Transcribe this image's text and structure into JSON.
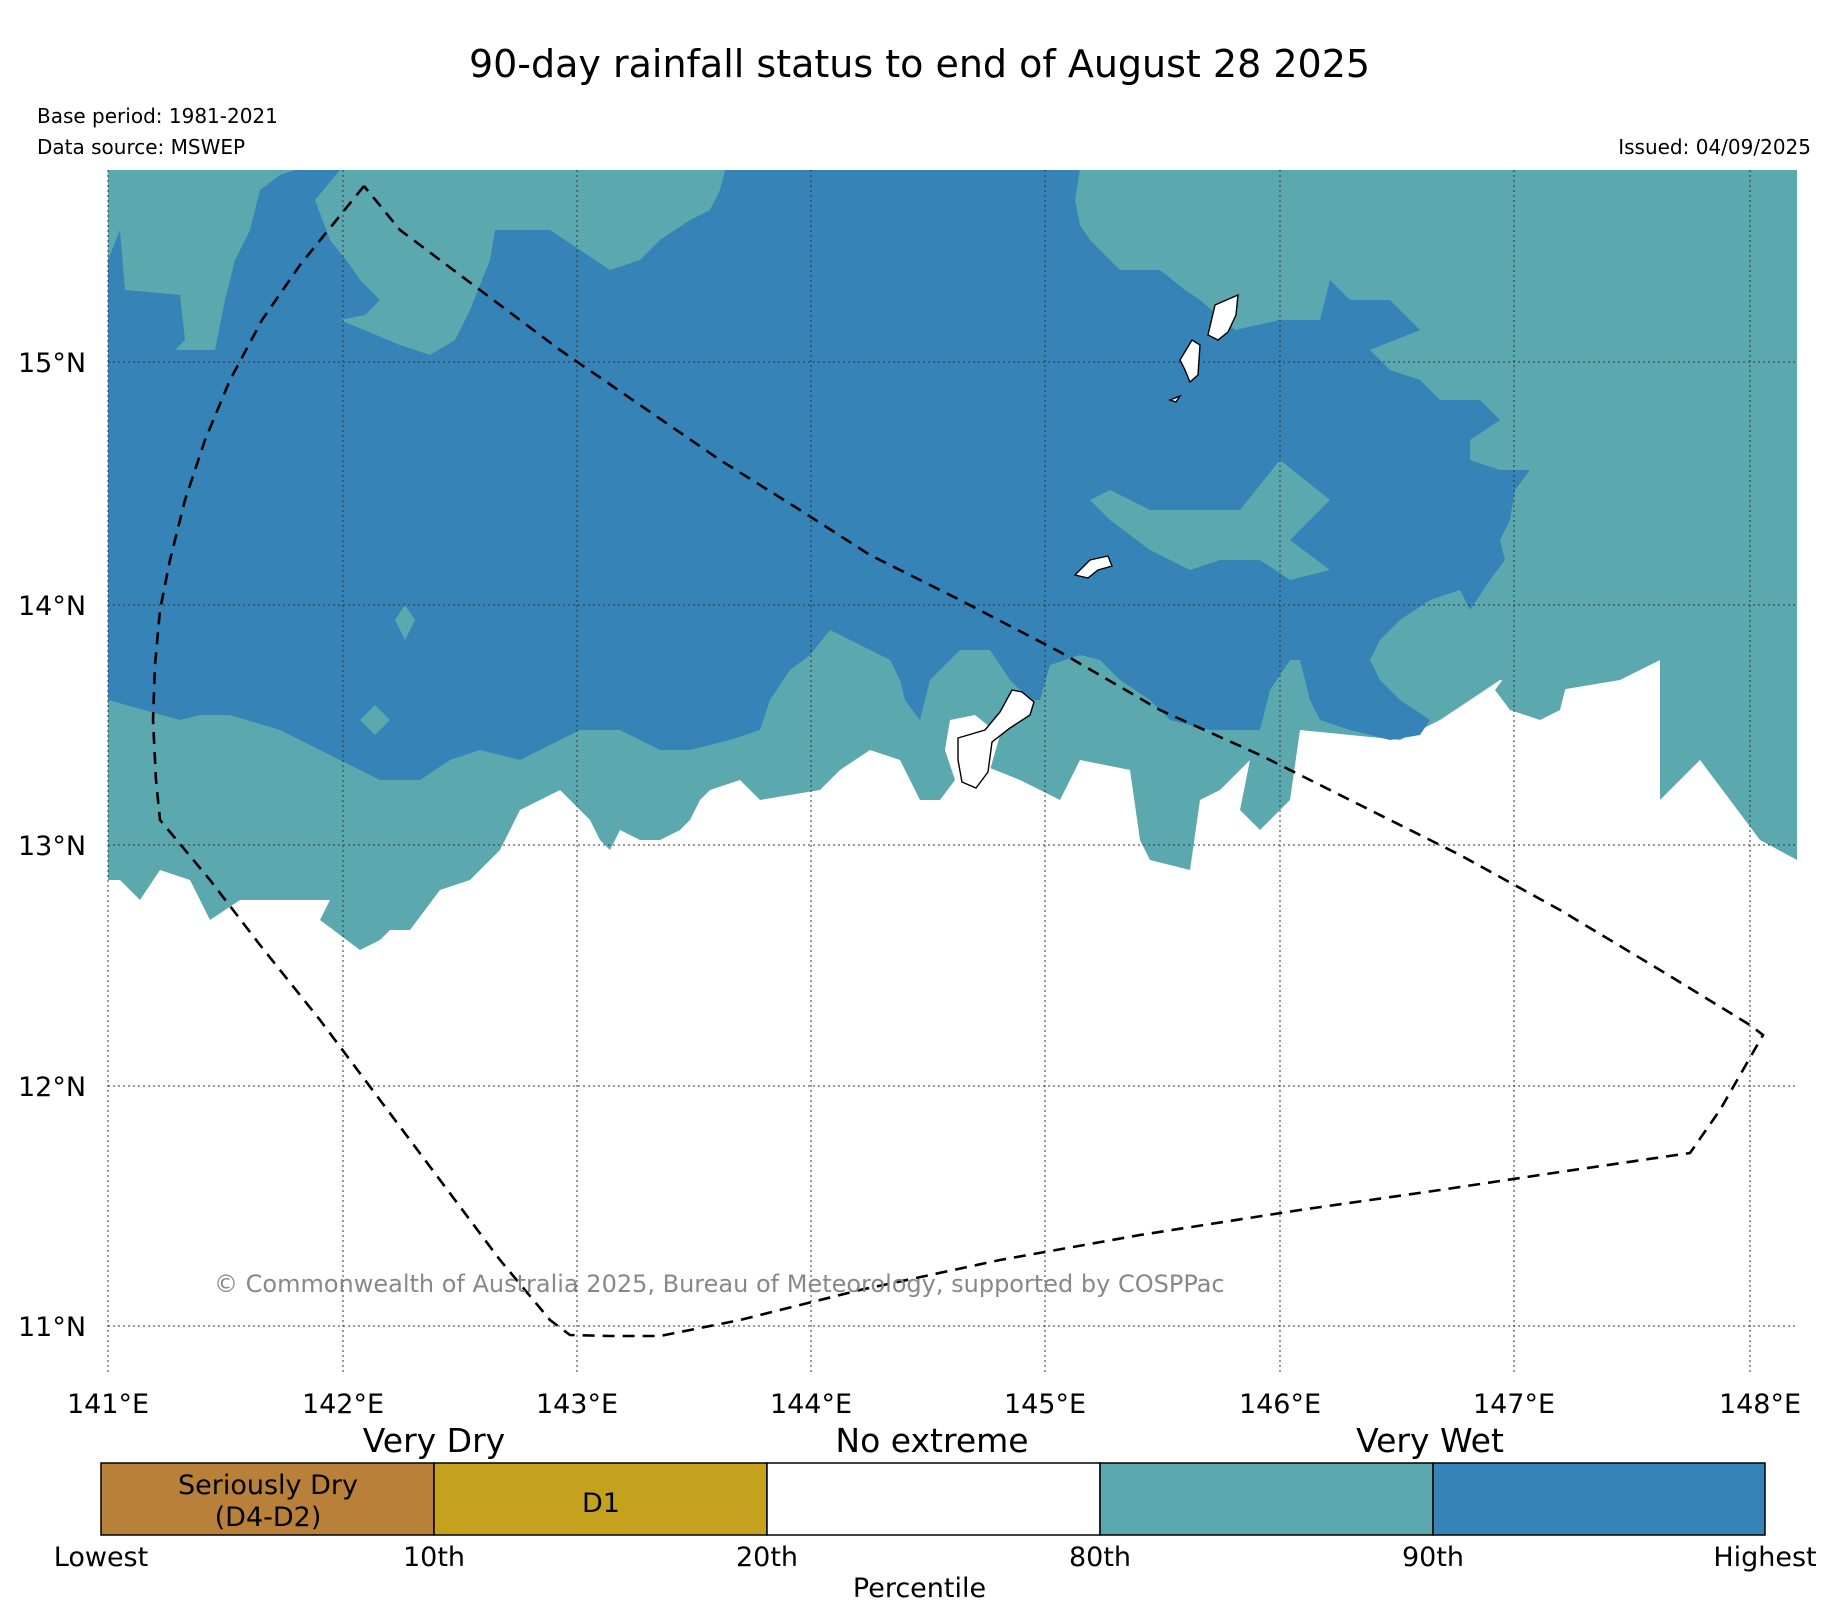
{
  "header": {
    "title": "90-day rainfall status to end of August 28 2025",
    "base_period": "Base period: 1981-2021",
    "data_source": "Data source: MSWEP",
    "issued": "Issued: 04/09/2025"
  },
  "map": {
    "lat_labels": [
      "15°N",
      "14°N",
      "13°N",
      "12°N",
      "11°N"
    ],
    "lon_labels": [
      "141°E",
      "142°E",
      "143°E",
      "144°E",
      "145°E",
      "146°E",
      "147°E",
      "148°E"
    ],
    "lon_range": [
      141,
      148.2
    ],
    "lat_range": [
      10.85,
      15.8
    ],
    "grid": true,
    "boundary": "dashed",
    "copyright": "© Commonwealth of Australia 2025, Bureau of Meteorology, supported by COSPPac"
  },
  "legend": {
    "categories": [
      "Very Dry",
      "No extreme",
      "Very Wet"
    ],
    "segments": [
      {
        "label_line1": "Seriously Dry",
        "label_line2": "(D4-D2)",
        "color": "#b88039"
      },
      {
        "label_line1": "D1",
        "label_line2": "",
        "color": "#c4a21e"
      },
      {
        "label_line1": "",
        "label_line2": "",
        "color": "#ffffff"
      },
      {
        "label_line1": "",
        "label_line2": "",
        "color": "#5ba8ae"
      },
      {
        "label_line1": "",
        "label_line2": "",
        "color": "#3683b7"
      }
    ],
    "ticks": [
      "Lowest",
      "10th",
      "20th",
      "80th",
      "90th",
      "Highest"
    ],
    "axis_title": "Percentile"
  }
}
